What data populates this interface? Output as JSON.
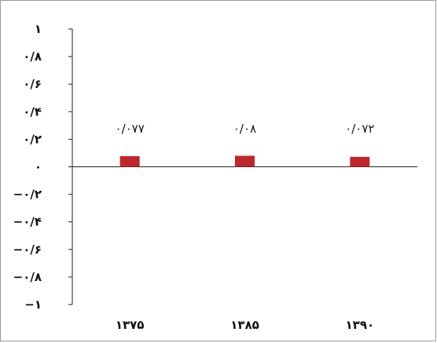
{
  "chart_data": {
    "type": "bar",
    "categories": [
      "۱۳۷۵",
      "۱۳۸۵",
      "۱۳۹۰"
    ],
    "values": [
      0.077,
      0.08,
      0.072
    ],
    "data_labels": [
      "۰/۰۷۷",
      "۰/۰۸",
      "۰/۰۷۲"
    ],
    "ylim": [
      -1,
      1
    ],
    "y_ticks": [
      1,
      0.8,
      0.6,
      0.4,
      0.2,
      0,
      -0.2,
      -0.4,
      -0.6,
      -0.8,
      -1
    ],
    "y_tick_labels": [
      "۱",
      "۰/۸",
      "۰/۶",
      "۰/۴",
      "۰/۲",
      "۰",
      "−۰/۲",
      "−۰/۴",
      "−۰/۶",
      "−۰/۸",
      "−۱"
    ],
    "grid": false,
    "bar_color": "#c0272d",
    "title": "",
    "xlabel": "",
    "ylabel": ""
  }
}
